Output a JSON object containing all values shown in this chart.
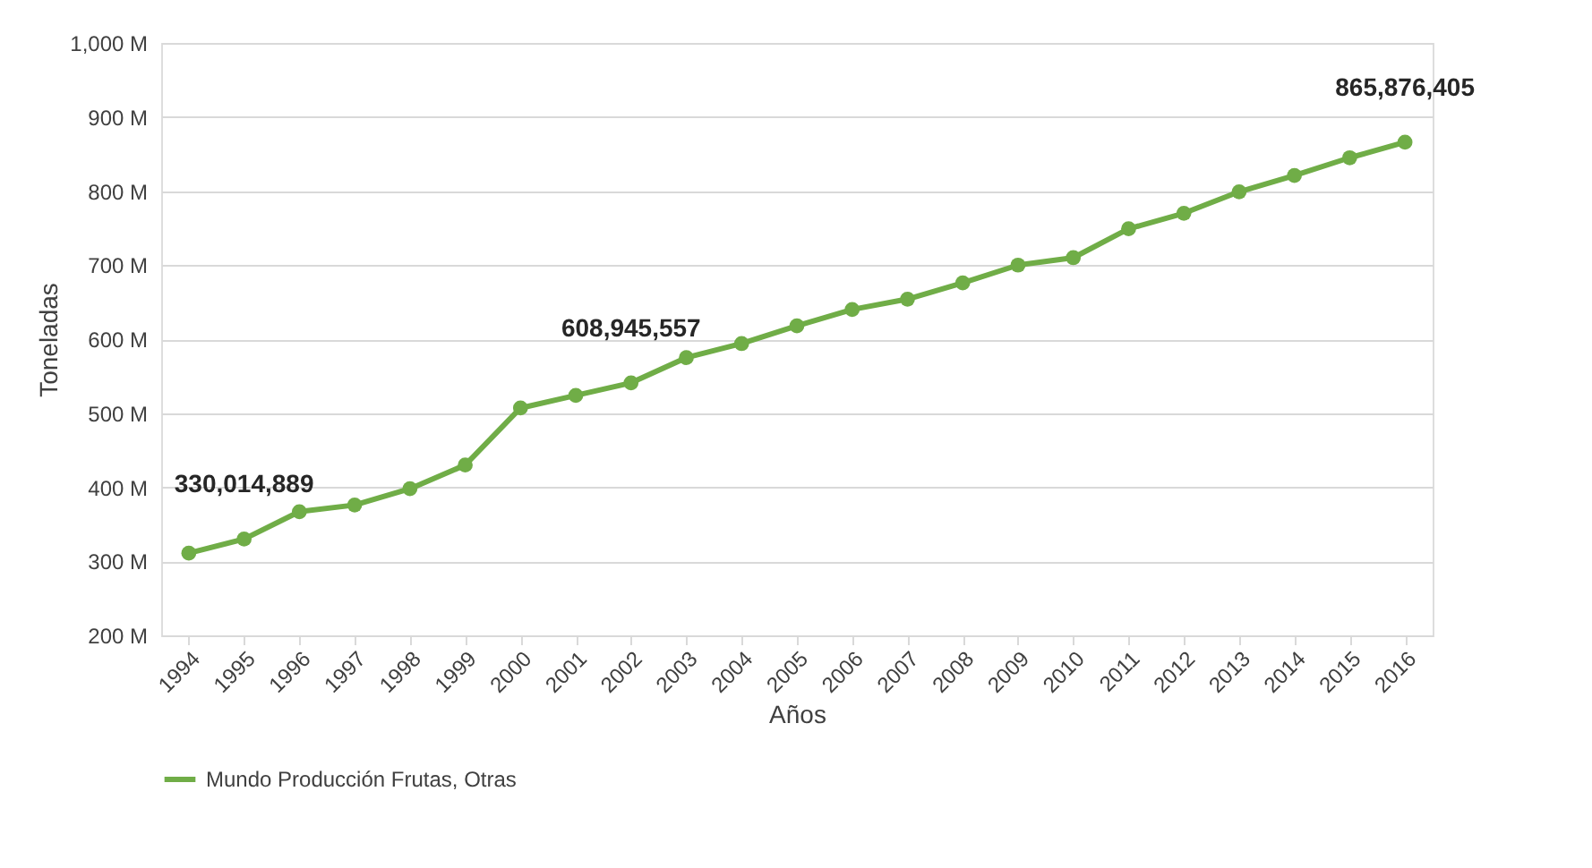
{
  "chart_data": {
    "type": "line",
    "xlabel": "Años",
    "ylabel": "Toneladas",
    "categories": [
      "1994",
      "1995",
      "1996",
      "1997",
      "1998",
      "1999",
      "2000",
      "2001",
      "2002",
      "2003",
      "2004",
      "2005",
      "2006",
      "2007",
      "2008",
      "2009",
      "2010",
      "2011",
      "2012",
      "2013",
      "2014",
      "2015",
      "2016"
    ],
    "series": [
      {
        "name": "Mundo Producción Frutas, Otras",
        "color": "#70ad47",
        "values": [
          311,
          330,
          367,
          376,
          398,
          430,
          507,
          524,
          541,
          575,
          594,
          618,
          640,
          654,
          676,
          700,
          710,
          749,
          770,
          799,
          821,
          845,
          866
        ]
      }
    ],
    "ylim": [
      200,
      1000
    ],
    "yticks": [
      {
        "value": 200,
        "label": "200 M"
      },
      {
        "value": 300,
        "label": "300 M"
      },
      {
        "value": 400,
        "label": "400 M"
      },
      {
        "value": 500,
        "label": "500 M"
      },
      {
        "value": 600,
        "label": "600 M"
      },
      {
        "value": 700,
        "label": "700 M"
      },
      {
        "value": 800,
        "label": "800 M"
      },
      {
        "value": 900,
        "label": "900 M"
      },
      {
        "value": 1000,
        "label": "1,000 M"
      }
    ],
    "annotations": [
      {
        "text": "330,014,889",
        "x": "1995",
        "y": 330
      },
      {
        "text": "608,945,557",
        "x": "2002",
        "y": 541
      },
      {
        "text": "865,876,405",
        "x": "2016",
        "y": 866
      }
    ],
    "grid": "y",
    "legend": "bottom",
    "marker": "circle",
    "line_style": "solid"
  }
}
